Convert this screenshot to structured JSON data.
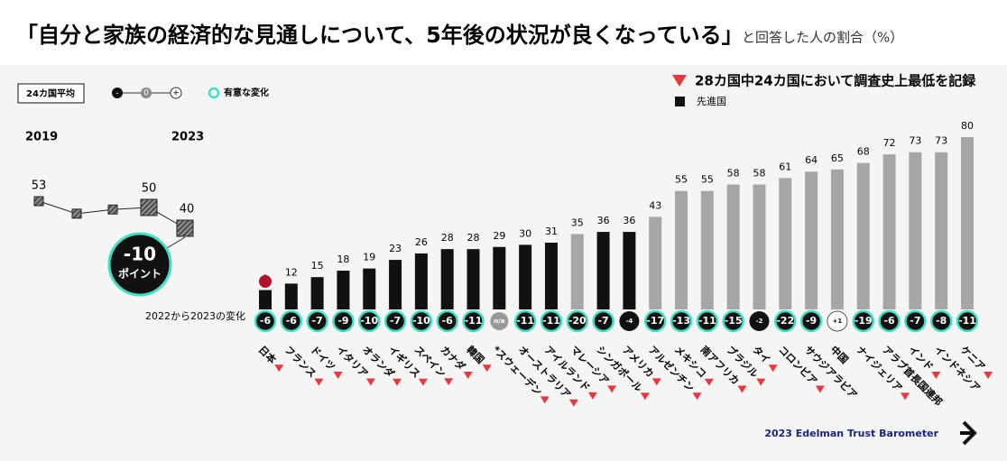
{
  "chart_data": {
    "type": "bar",
    "title": "「自分と家族の経済的な見通しについて、5年後の状況が良くなっている」",
    "subtitle": "と回答した人の割合（%）",
    "legend_record": "28カ国中24カ国において調査史上最低を記録",
    "legend_developed": "先進国",
    "legend_average": "24カ国平均",
    "legend_scale": [
      "-",
      "0",
      "+"
    ],
    "legend_significant": "有意な変化",
    "change_row_label": "2022から2023の変化",
    "source": "2023 Edelman Trust Barometer",
    "developed_color": "#111111",
    "other_color": "#a6a6a6",
    "record_color": "#e8383d",
    "significant_color": "#3fe0c5",
    "categories": [
      "日本",
      "フランス",
      "ドイツ",
      "イタリア",
      "オランダ",
      "イギリス",
      "スペイン",
      "カナダ",
      "韓国",
      "*スウェーデン",
      "オーストラリア",
      "アイルランド",
      "マレーシア",
      "シンガポール",
      "アメリカ",
      "アルゼンチン",
      "メキシコ",
      "南アフリカ",
      "ブラジル",
      "タイ",
      "コロンビア",
      "サウジアラビア",
      "中国",
      "ナイジェリア",
      "アラブ首長国連邦",
      "インド",
      "インドネシア",
      "ケニア"
    ],
    "values": [
      9,
      12,
      15,
      18,
      19,
      23,
      26,
      28,
      28,
      29,
      30,
      31,
      35,
      36,
      36,
      43,
      55,
      55,
      58,
      58,
      61,
      64,
      65,
      68,
      72,
      73,
      73,
      80
    ],
    "developed": [
      true,
      true,
      true,
      true,
      true,
      true,
      true,
      true,
      true,
      true,
      true,
      true,
      false,
      true,
      true,
      false,
      false,
      false,
      false,
      false,
      false,
      false,
      false,
      false,
      false,
      false,
      false,
      false
    ],
    "record_low": [
      true,
      true,
      true,
      true,
      true,
      true,
      true,
      true,
      true,
      true,
      true,
      true,
      true,
      true,
      true,
      true,
      true,
      true,
      true,
      true,
      true,
      false,
      false,
      true,
      false,
      true,
      false,
      true
    ],
    "changes": [
      -6,
      -6,
      -7,
      -9,
      -10,
      -7,
      -10,
      -6,
      -11,
      null,
      -11,
      -11,
      -20,
      -7,
      -4,
      -17,
      -13,
      -11,
      -15,
      -2,
      -22,
      -9,
      1,
      -19,
      -6,
      -7,
      -8,
      -11
    ],
    "change_labels": [
      "-6",
      "-6",
      "-7",
      "-9",
      "-10",
      "-7",
      "-10",
      "-6",
      "-11",
      "n/a",
      "-11",
      "-11",
      "-20",
      "-7",
      "-4",
      "-17",
      "-13",
      "-11",
      "-15",
      "-2",
      "-22",
      "-9",
      "+1",
      "-19",
      "-6",
      "-7",
      "-8",
      "-11"
    ],
    "significant": [
      true,
      true,
      true,
      true,
      true,
      true,
      true,
      true,
      true,
      false,
      true,
      true,
      true,
      true,
      false,
      true,
      true,
      true,
      true,
      false,
      true,
      true,
      false,
      true,
      true,
      true,
      true,
      true
    ],
    "inset": {
      "start_label": "2019",
      "end_label": "2023",
      "values": [
        53,
        47,
        49,
        50,
        40
      ],
      "value_labels": [
        "53",
        null,
        null,
        "50",
        "40"
      ],
      "change_label": "-10",
      "change_unit": "ポイント"
    }
  }
}
